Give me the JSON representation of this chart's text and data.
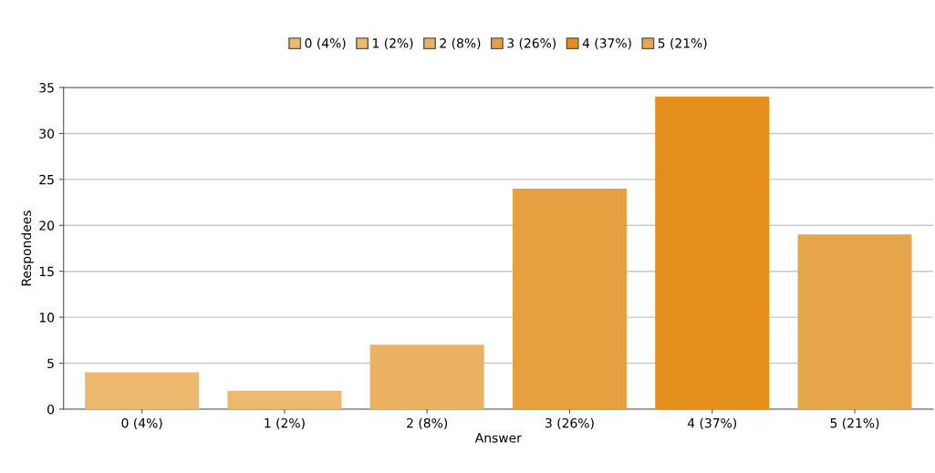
{
  "chart_data": {
    "type": "bar",
    "xlabel": "Answer",
    "ylabel": "Respondees",
    "stacked": true,
    "categories": [
      "0 (4%)",
      "1 (2%)",
      "2 (8%)",
      "3 (26%)",
      "4 (37%)",
      "5 (21%)"
    ],
    "series": [
      {
        "name": "0 (4%)",
        "color": "#ecb96e",
        "values": [
          4,
          null,
          null,
          null,
          null,
          null
        ]
      },
      {
        "name": "1 (2%)",
        "color": "#ecb96e",
        "values": [
          null,
          2,
          null,
          null,
          null,
          null
        ]
      },
      {
        "name": "2 (8%)",
        "color": "#eab262",
        "values": [
          null,
          null,
          7,
          null,
          null,
          null
        ]
      },
      {
        "name": "3 (26%)",
        "color": "#e6a040",
        "values": [
          null,
          null,
          null,
          24,
          null,
          null
        ]
      },
      {
        "name": "4 (37%)",
        "color": "#e48f1c",
        "values": [
          null,
          null,
          null,
          null,
          34,
          null
        ]
      },
      {
        "name": "5 (21%)",
        "color": "#e7a64c",
        "values": [
          null,
          null,
          null,
          null,
          null,
          19
        ]
      }
    ],
    "ylim": [
      0,
      35
    ],
    "yticks": [
      0,
      5,
      10,
      15,
      20,
      25,
      30,
      35
    ],
    "grid": "y",
    "legend": "top"
  }
}
